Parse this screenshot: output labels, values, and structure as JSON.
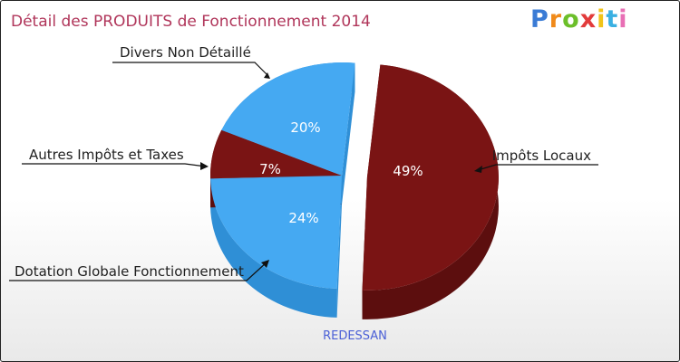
{
  "logo": {
    "letters": [
      "P",
      "r",
      "o",
      "x",
      "i",
      "t",
      "i"
    ],
    "colors": [
      "#3a7bd5",
      "#f08a1a",
      "#6cbf2a",
      "#e23b3b",
      "#f0c419",
      "#3ab0e2",
      "#e86fb5"
    ]
  },
  "chart_data": {
    "type": "pie",
    "title": "Détail des PRODUITS de Fonctionnement 2014",
    "footer": "REDESSAN",
    "slices": [
      {
        "name": "Impôts Locaux",
        "value": 49,
        "percent_label": "49%",
        "color": "#7a1414",
        "side_color": "#5c0e0e",
        "exploded": true
      },
      {
        "name": "Dotation Globale Fonctionnement",
        "value": 24,
        "percent_label": "24%",
        "color": "#45a9f2",
        "side_color": "#2f8fd6",
        "exploded": false
      },
      {
        "name": "Autres Impôts et Taxes",
        "value": 7,
        "percent_label": "7%",
        "color": "#7a1414",
        "side_color": "#5c0e0e",
        "exploded": false
      },
      {
        "name": "Divers Non Détaillé",
        "value": 20,
        "percent_label": "20%",
        "color": "#45a9f2",
        "side_color": "#2f8fd6",
        "exploded": false
      }
    ]
  }
}
